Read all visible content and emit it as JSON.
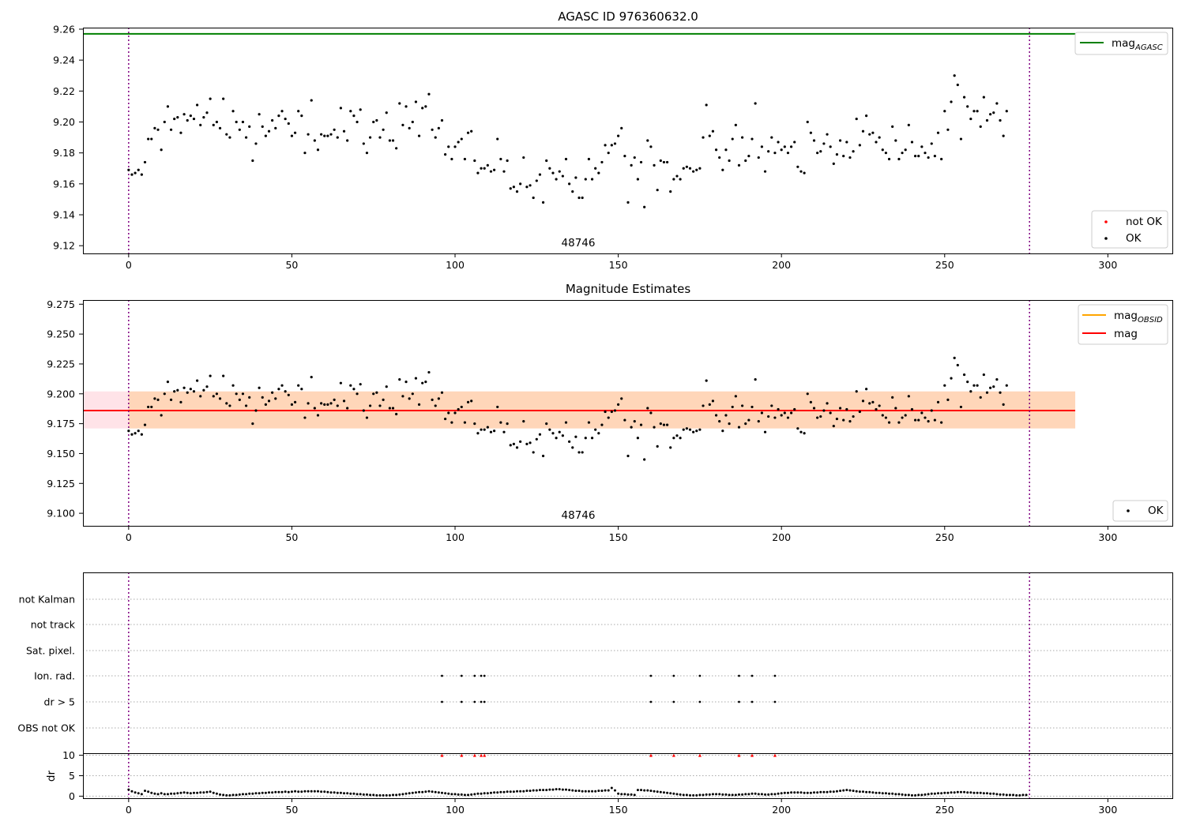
{
  "figure": {
    "title": "AGASC ID 976360632.0"
  },
  "chart_data": [
    {
      "type": "scatter",
      "title": "AGASC ID 976360632.0",
      "xlabel": "",
      "ylabel": "",
      "xlim": [
        -14,
        320
      ],
      "ylim": [
        9.115,
        9.261
      ],
      "xticks": [
        0,
        50,
        100,
        150,
        200,
        250,
        300
      ],
      "yticks": [
        9.12,
        9.14,
        9.16,
        9.18,
        9.2,
        9.22,
        9.24,
        9.26
      ],
      "ytick_labels": [
        "9.12",
        "9.14",
        "9.16",
        "9.18",
        "9.20",
        "9.22",
        "9.24",
        "9.26"
      ],
      "mag_agasc": 9.257,
      "obsid_text": "48746",
      "vlines": [
        0,
        276
      ],
      "legend_upper": {
        "line_label": "mag",
        "line_sub": "AGASC",
        "color": "#008000",
        "position": "top-right"
      },
      "legend_lower": {
        "items": [
          {
            "label": "not OK",
            "color": "#ff0000"
          },
          {
            "label": "OK",
            "color": "#000000"
          }
        ],
        "position": "bottom-right"
      },
      "series": [
        {
          "name": "OK",
          "use_mag_series": true
        }
      ]
    },
    {
      "type": "scatter",
      "title": "Magnitude Estimates",
      "xlim": [
        -14,
        320
      ],
      "ylim": [
        9.0895,
        9.2785
      ],
      "xticks": [
        0,
        50,
        100,
        150,
        200,
        250,
        300
      ],
      "yticks": [
        9.1,
        9.125,
        9.15,
        9.175,
        9.2,
        9.225,
        9.25,
        9.275
      ],
      "ytick_labels": [
        "9.100",
        "9.125",
        "9.150",
        "9.175",
        "9.200",
        "9.225",
        "9.250",
        "9.275"
      ],
      "mag": 9.186,
      "band_lower": 9.171,
      "band_upper": 9.202,
      "band_xrange": [
        -14,
        290
      ],
      "obsid_text": "48746",
      "vlines": [
        0,
        276
      ],
      "legend_upper": {
        "items": [
          {
            "label": "mag",
            "sub": "OBSID",
            "color": "#ffa500"
          },
          {
            "label": "mag",
            "sub": "",
            "color": "#ff0000"
          }
        ],
        "position": "top-right"
      },
      "legend_lower": {
        "items": [
          {
            "label": "OK",
            "color": "#000000"
          }
        ],
        "position": "bottom-right"
      }
    },
    {
      "type": "scatter",
      "xlim": [
        -14,
        320
      ],
      "xticks": [
        0,
        50,
        100,
        150,
        200,
        250,
        300
      ],
      "flag_labels": [
        "not Kalman",
        "not track",
        "Sat. pixel.",
        "Ion. rad.",
        "dr > 5",
        "OBS not OK"
      ],
      "flagged_x": [
        96,
        102,
        106,
        108,
        109,
        160,
        167,
        175,
        187,
        191,
        198
      ],
      "flag_rows_marked": [
        "Ion. rad.",
        "dr > 5"
      ],
      "dr_ylabel": "dr",
      "dr_yticks": [
        0,
        5,
        10
      ],
      "dr_ylim": [
        -0.5,
        10.5
      ],
      "vlines": [
        0,
        276
      ]
    }
  ],
  "mag_series": [
    9.169,
    9.166,
    9.167,
    9.169,
    9.166,
    9.174,
    9.189,
    9.189,
    9.196,
    9.195,
    9.182,
    9.2,
    9.21,
    9.195,
    9.202,
    9.203,
    9.193,
    9.205,
    9.201,
    9.204,
    9.202,
    9.211,
    9.198,
    9.203,
    9.206,
    9.215,
    9.198,
    9.2,
    9.196,
    9.215,
    9.192,
    9.19,
    9.207,
    9.2,
    9.195,
    9.2,
    9.19,
    9.197,
    9.175,
    9.186,
    9.205,
    9.197,
    9.191,
    9.194,
    9.201,
    9.196,
    9.204,
    9.207,
    9.202,
    9.199,
    9.191,
    9.193,
    9.207,
    9.204,
    9.18,
    9.192,
    9.214,
    9.188,
    9.182,
    9.192,
    9.191,
    9.191,
    9.192,
    9.195,
    9.19,
    9.209,
    9.194,
    9.188,
    9.207,
    9.204,
    9.2,
    9.208,
    9.186,
    9.18,
    9.19,
    9.2,
    9.201,
    9.19,
    9.195,
    9.206,
    9.188,
    9.188,
    9.183,
    9.212,
    9.198,
    9.21,
    9.196,
    9.2,
    9.213,
    9.191,
    9.209,
    9.21,
    9.218,
    9.195,
    9.19,
    9.196,
    9.201,
    9.179,
    9.184,
    9.176,
    9.184,
    9.187,
    9.189,
    9.176,
    9.193,
    9.194,
    9.175,
    9.167,
    9.17,
    9.17,
    9.172,
    9.168,
    9.169,
    9.189,
    9.176,
    9.168,
    9.175,
    9.157,
    9.158,
    9.155,
    9.16,
    9.177,
    9.158,
    9.159,
    9.151,
    9.162,
    9.166,
    9.148,
    9.175,
    9.17,
    9.167,
    9.163,
    9.168,
    9.165,
    9.176,
    9.16,
    9.155,
    9.164,
    9.151,
    9.151,
    9.163,
    9.176,
    9.163,
    9.17,
    9.167,
    9.174,
    9.185,
    9.18,
    9.185,
    9.186,
    9.191,
    9.196,
    9.178,
    9.148,
    9.172,
    9.177,
    9.163,
    9.174,
    9.145,
    9.188,
    9.184,
    9.172,
    9.156,
    9.175,
    9.174,
    9.174,
    9.155,
    9.163,
    9.165,
    9.163,
    9.17,
    9.171,
    9.17,
    9.168,
    9.169,
    9.17,
    9.19,
    9.211,
    9.191,
    9.194,
    9.182,
    9.177,
    9.169,
    9.182,
    9.175,
    9.189,
    9.198,
    9.172,
    9.19,
    9.175,
    9.178,
    9.189,
    9.212,
    9.177,
    9.184,
    9.168,
    9.181,
    9.19,
    9.18,
    9.187,
    9.182,
    9.184,
    9.18,
    9.184,
    9.187,
    9.171,
    9.168,
    9.167,
    9.2,
    9.193,
    9.188,
    9.18,
    9.181,
    9.186,
    9.192,
    9.184,
    9.173,
    9.179,
    9.188,
    9.178,
    9.187,
    9.177,
    9.181,
    9.202,
    9.185,
    9.194,
    9.204,
    9.192,
    9.193,
    9.187,
    9.19,
    9.182,
    9.18,
    9.176,
    9.197,
    9.188,
    9.176,
    9.18,
    9.182,
    9.198,
    9.187,
    9.178,
    9.178,
    9.184,
    9.18,
    9.177,
    9.186,
    9.178,
    9.193,
    9.176,
    9.207,
    9.195,
    9.213,
    9.23,
    9.224,
    9.189,
    9.216,
    9.21,
    9.202,
    9.207,
    9.207,
    9.197,
    9.216,
    9.201,
    9.205,
    9.206,
    9.212,
    9.201,
    9.191,
    9.207
  ],
  "dr_series": [
    1.6,
    1.2,
    0.9,
    0.7,
    0.5,
    1.3,
    1.1,
    0.8,
    0.6,
    0.5,
    0.7,
    0.5,
    0.5,
    0.6,
    0.6,
    0.7,
    0.8,
    0.9,
    0.8,
    0.7,
    0.8,
    0.8,
    0.9,
    0.9,
    1.0,
    1.1,
    0.8,
    0.6,
    0.4,
    0.3,
    0.2,
    0.2,
    0.3,
    0.3,
    0.4,
    0.5,
    0.5,
    0.6,
    0.6,
    0.7,
    0.7,
    0.8,
    0.8,
    0.9,
    0.9,
    1.0,
    1.0,
    1.0,
    1.1,
    1.0,
    1.1,
    1.2,
    1.1,
    1.1,
    1.2,
    1.2,
    1.2,
    1.2,
    1.2,
    1.1,
    1.1,
    1.0,
    0.9,
    0.9,
    0.8,
    0.8,
    0.7,
    0.7,
    0.6,
    0.6,
    0.5,
    0.5,
    0.4,
    0.4,
    0.3,
    0.3,
    0.2,
    0.2,
    0.2,
    0.2,
    0.2,
    0.3,
    0.3,
    0.4,
    0.5,
    0.6,
    0.7,
    0.8,
    0.9,
    1.0,
    1.0,
    1.1,
    1.2,
    1.1,
    1.0,
    0.9,
    0.8,
    0.7,
    0.6,
    0.5,
    0.5,
    0.4,
    0.4,
    0.3,
    0.3,
    0.4,
    0.5,
    0.6,
    0.6,
    0.7,
    0.7,
    0.8,
    0.9,
    0.9,
    1.0,
    1.0,
    1.1,
    1.1,
    1.1,
    1.2,
    1.2,
    1.2,
    1.3,
    1.3,
    1.4,
    1.4,
    1.5,
    1.5,
    1.5,
    1.6,
    1.6,
    1.7,
    1.7,
    1.6,
    1.6,
    1.5,
    1.4,
    1.3,
    1.3,
    1.2,
    1.2,
    1.2,
    1.2,
    1.2,
    1.3,
    1.3,
    1.4,
    1.4,
    2.0,
    1.4,
    0.6,
    0.5,
    0.5,
    0.4,
    0.4,
    0.3,
    1.5,
    1.5,
    1.4,
    1.4,
    1.3,
    1.2,
    1.1,
    1.0,
    0.9,
    0.8,
    0.7,
    0.6,
    0.5,
    0.4,
    0.3,
    0.3,
    0.2,
    0.2,
    0.2,
    0.3,
    0.3,
    0.4,
    0.4,
    0.5,
    0.5,
    0.5,
    0.4,
    0.4,
    0.3,
    0.3,
    0.3,
    0.4,
    0.4,
    0.5,
    0.5,
    0.6,
    0.6,
    0.5,
    0.5,
    0.4,
    0.4,
    0.5,
    0.5,
    0.6,
    0.7,
    0.8,
    0.8,
    0.9,
    0.9,
    0.9,
    0.9,
    0.8,
    0.8,
    0.8,
    0.9,
    0.9,
    1.0,
    1.0,
    1.0,
    1.1,
    1.1,
    1.2,
    1.3,
    1.4,
    1.5,
    1.4,
    1.3,
    1.2,
    1.1,
    1.1,
    1.0,
    1.0,
    0.9,
    0.8,
    0.8,
    0.7,
    0.7,
    0.6,
    0.6,
    0.5,
    0.5,
    0.4,
    0.3,
    0.3,
    0.2,
    0.2,
    0.3,
    0.3,
    0.4,
    0.5,
    0.6,
    0.6,
    0.7,
    0.7,
    0.8,
    0.8,
    0.9,
    0.9,
    1.0,
    1.0,
    1.0,
    0.9,
    0.9,
    0.8,
    0.8,
    0.8,
    0.7,
    0.7,
    0.6,
    0.6,
    0.5,
    0.4,
    0.4,
    0.3,
    0.3,
    0.3,
    0.2,
    0.2,
    0.3,
    0.3
  ]
}
